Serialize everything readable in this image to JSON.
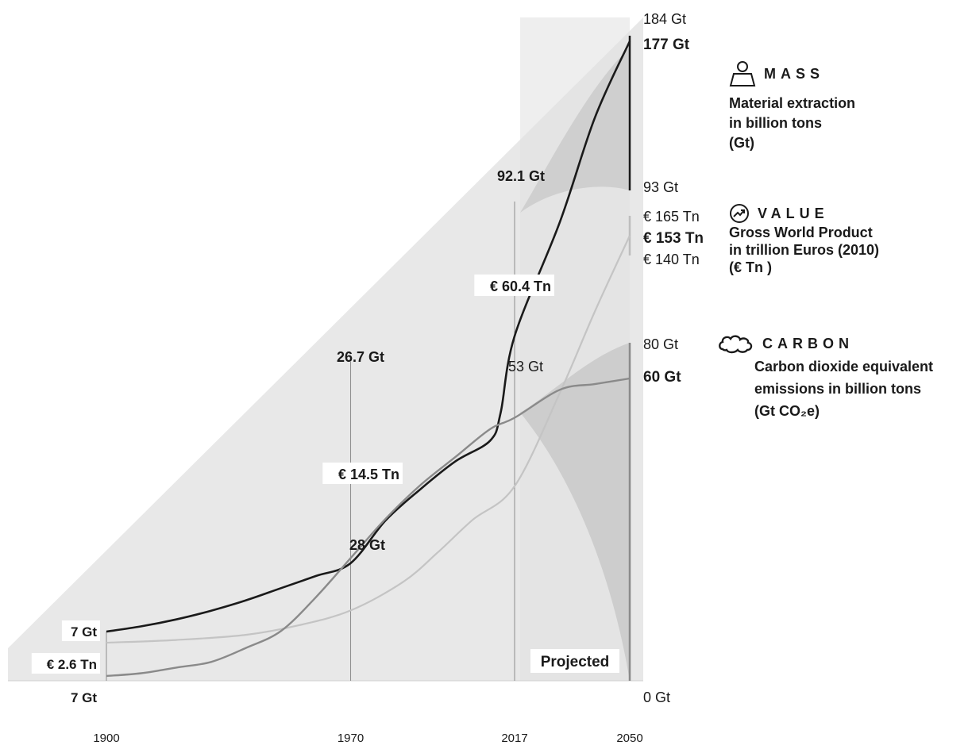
{
  "chart_data": {
    "type": "line",
    "x_ticks": [
      "1900",
      "1970",
      "2017",
      "2050"
    ],
    "projected_label": "Projected",
    "series": [
      {
        "name": "Material extraction in billion tons (Gt)",
        "unit": "Gt",
        "color": "#1a1a1a",
        "points": [
          [
            1900,
            7
          ],
          [
            1910,
            8.5
          ],
          [
            1920,
            10.5
          ],
          [
            1930,
            13
          ],
          [
            1940,
            16
          ],
          [
            1950,
            19.5
          ],
          [
            1960,
            23
          ],
          [
            1970,
            26.7
          ],
          [
            1980,
            39
          ],
          [
            1990,
            48
          ],
          [
            2000,
            56
          ],
          [
            2010,
            62
          ],
          [
            2013,
            70
          ],
          [
            2017,
            92.1
          ],
          [
            2030,
            125
          ],
          [
            2040,
            155
          ],
          [
            2050,
            177
          ]
        ],
        "labels": [
          {
            "key": "start",
            "text": "7 Gt"
          },
          {
            "key": "y1970",
            "text": "26.7 Gt"
          },
          {
            "key": "y2017",
            "text": "92.1 Gt"
          },
          {
            "key": "end_high",
            "text": "184 Gt"
          },
          {
            "key": "end_mid",
            "text": "177 Gt"
          },
          {
            "key": "end_low",
            "text": "93 Gt"
          }
        ]
      },
      {
        "name": "Gross World Product in trillion Euros (2010)",
        "unit": "€ Tn",
        "color": "#c4c4c4",
        "points": [
          [
            1900,
            2.6
          ],
          [
            1920,
            3.6
          ],
          [
            1940,
            5.5
          ],
          [
            1955,
            9
          ],
          [
            1970,
            14.5
          ],
          [
            1985,
            25
          ],
          [
            1995,
            36
          ],
          [
            2005,
            48
          ],
          [
            2017,
            60.4
          ],
          [
            2030,
            95
          ],
          [
            2040,
            125
          ],
          [
            2050,
            153
          ]
        ],
        "labels": [
          {
            "key": "start",
            "text": "€ 2.6 Tn"
          },
          {
            "key": "y1970",
            "text": "€ 14.5 Tn"
          },
          {
            "key": "y2017",
            "text": "€ 60.4 Tn"
          },
          {
            "key": "end_high",
            "text": "€ 165 Tn"
          },
          {
            "key": "end_mid",
            "text": "€ 153 Tn"
          },
          {
            "key": "end_low",
            "text": "€ 140 Tn"
          }
        ]
      },
      {
        "name": "Carbon dioxide equivalent emissions in billion tons (Gt CO2e)",
        "unit": "Gt CO2e",
        "color": "#8a8a8a",
        "points": [
          [
            1900,
            7
          ],
          [
            1910,
            7.5
          ],
          [
            1920,
            8.5
          ],
          [
            1930,
            9.5
          ],
          [
            1940,
            12
          ],
          [
            1950,
            15
          ],
          [
            1960,
            21
          ],
          [
            1970,
            28
          ],
          [
            1980,
            35
          ],
          [
            1990,
            41
          ],
          [
            2000,
            46
          ],
          [
            2010,
            51
          ],
          [
            2017,
            53
          ],
          [
            2030,
            58
          ],
          [
            2040,
            59
          ],
          [
            2050,
            60
          ]
        ],
        "labels": [
          {
            "key": "start",
            "text": "7 Gt"
          },
          {
            "key": "y1970",
            "text": "28 Gt"
          },
          {
            "key": "y2017",
            "text": "53 Gt"
          },
          {
            "key": "end_high",
            "text": "80 Gt"
          },
          {
            "key": "end_mid",
            "text": "60 Gt"
          },
          {
            "key": "end_low",
            "text": "0 Gt"
          }
        ]
      }
    ]
  },
  "legend": {
    "mass": {
      "title": "MASS",
      "lines": [
        "Material extraction",
        "in billion tons",
        "(Gt)"
      ],
      "icon": "weight-icon"
    },
    "value": {
      "title": "VALUE",
      "lines": [
        "Gross World Product",
        "in trillion Euros (2010)",
        "(€ Tn )"
      ],
      "icon": "growth-arrow-icon"
    },
    "carbon": {
      "title": "CARBON",
      "lines": [
        "Carbon dioxide equivalent",
        "emissions in billion tons",
        "(Gt CO₂e)"
      ],
      "icon": "cloud-icon"
    }
  }
}
